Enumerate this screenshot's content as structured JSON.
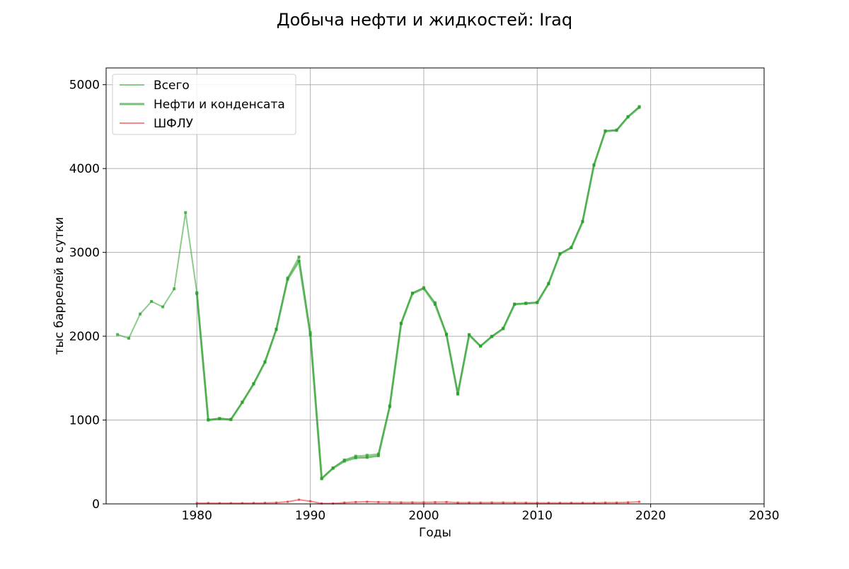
{
  "chart_data": {
    "type": "line",
    "title": "Добыча нефти и жидкостей: Iraq",
    "xlabel": "Годы",
    "ylabel": "тыс баррелей в сутки",
    "xlim": [
      1972,
      2030
    ],
    "ylim": [
      0,
      5200
    ],
    "xticks": [
      1980,
      1990,
      2000,
      2010,
      2020,
      2030
    ],
    "yticks": [
      0,
      1000,
      2000,
      3000,
      4000,
      5000
    ],
    "grid": true,
    "legend_position": "top-left",
    "series": [
      {
        "name": "Всего",
        "color": "#2ca02c",
        "x": [
          1973,
          1974,
          1975,
          1976,
          1977,
          1978,
          1979,
          1980,
          1981,
          1982,
          1983,
          1984,
          1985,
          1986,
          1987,
          1988,
          1989,
          1990,
          1991,
          1992,
          1993,
          1994,
          1995,
          1996,
          1997,
          1998,
          1999,
          2000,
          2001,
          2002,
          2003,
          2004,
          2005,
          2006,
          2007,
          2008,
          2009,
          2010,
          2011,
          2012,
          2013,
          2014,
          2015,
          2016,
          2017,
          2018,
          2019
        ],
        "values": [
          2020,
          1975,
          2265,
          2415,
          2350,
          2565,
          3475,
          2520,
          1005,
          1020,
          1010,
          1215,
          1435,
          1695,
          2085,
          2695,
          2945,
          2045,
          305,
          430,
          525,
          570,
          580,
          595,
          1170,
          2155,
          2515,
          2580,
          2400,
          2025,
          1320,
          2020,
          1885,
          2000,
          2095,
          2385,
          2395,
          2405,
          2630,
          2985,
          3060,
          3370,
          4045,
          4450,
          4460,
          4620,
          4740
        ]
      },
      {
        "name": "Нефти и конденсата",
        "color": "#2ca02c",
        "x": [
          1980,
          1981,
          1982,
          1983,
          1984,
          1985,
          1986,
          1987,
          1988,
          1989,
          1990,
          1991,
          1992,
          1993,
          1994,
          1995,
          1996,
          1997,
          1998,
          1999,
          2000,
          2001,
          2002,
          2003,
          2004,
          2005,
          2006,
          2007,
          2008,
          2009,
          2010,
          2011,
          2012,
          2013,
          2014,
          2015,
          2016,
          2017,
          2018,
          2019
        ],
        "values": [
          2510,
          1000,
          1015,
          1005,
          1210,
          1430,
          1690,
          2080,
          2680,
          2895,
          2015,
          300,
          425,
          510,
          550,
          555,
          575,
          1160,
          2150,
          2510,
          2570,
          2380,
          2020,
          1310,
          2015,
          1880,
          1995,
          2090,
          2380,
          2390,
          2400,
          2625,
          2980,
          3055,
          3365,
          4040,
          4445,
          4455,
          4615,
          4730
        ]
      },
      {
        "name": "ШФЛУ",
        "color": "#e8383d",
        "x": [
          1980,
          1981,
          1982,
          1983,
          1984,
          1985,
          1986,
          1987,
          1988,
          1989,
          1990,
          1991,
          1992,
          1993,
          1994,
          1995,
          1996,
          1997,
          1998,
          1999,
          2000,
          2001,
          2002,
          2003,
          2004,
          2005,
          2006,
          2007,
          2008,
          2009,
          2010,
          2011,
          2012,
          2013,
          2014,
          2015,
          2016,
          2017,
          2018,
          2019
        ],
        "values": [
          10,
          10,
          8,
          8,
          8,
          10,
          12,
          15,
          25,
          50,
          32,
          5,
          5,
          15,
          22,
          25,
          22,
          20,
          18,
          18,
          18,
          20,
          22,
          15,
          15,
          15,
          16,
          16,
          15,
          14,
          12,
          12,
          12,
          12,
          12,
          12,
          15,
          15,
          18,
          25
        ]
      }
    ]
  }
}
